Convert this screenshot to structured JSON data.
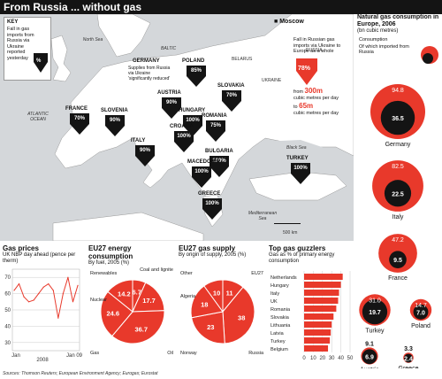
{
  "header": {
    "title": "From Russia ... without gas"
  },
  "key": {
    "title": "KEY",
    "text": "Fall in gas imports from Russia via Ukraine reported yesterday",
    "symbol": "%"
  },
  "moscow_label": "Moscow",
  "eu_fall": {
    "text1": "Fall in Russian gas imports via Ukraine to Europe as a whole",
    "value": "78%",
    "from_big": "300m",
    "from_rest": "cubic metres per day",
    "from_prefix": "from",
    "to_prefix": "to",
    "to_big": "65m",
    "to_rest": "cubic metres per day"
  },
  "seas": {
    "north_sea": "North Sea",
    "baltic": "BALTIC",
    "atlantic": "ATLANTIC OCEAN",
    "black_sea": "Black Sea",
    "med": "Mediterranean Sea"
  },
  "places": {
    "belarus": "BELARUS",
    "ukraine": "UKRAINE",
    "russia": "RUSSIA"
  },
  "scale_label": "500 km",
  "germany_note": "Supplies from Russia via Ukraine 'significantly reduced'",
  "country_markers": [
    {
      "name": "GERMANY",
      "value": ""
    },
    {
      "name": "POLAND",
      "value": "85%"
    },
    {
      "name": "SLOVAKIA",
      "value": "70%"
    },
    {
      "name": "AUSTRIA",
      "value": "90%"
    },
    {
      "name": "FRANCE",
      "value": "70%"
    },
    {
      "name": "SLOVENIA",
      "value": "90%"
    },
    {
      "name": "HUNGARY",
      "value": "100%"
    },
    {
      "name": "ROMANIA",
      "value": "75%"
    },
    {
      "name": "CROATIA",
      "value": "100%"
    },
    {
      "name": "ITALY",
      "value": "90%"
    },
    {
      "name": "BULGARIA",
      "value": "100%"
    },
    {
      "name": "MACEDONIA",
      "value": "100%"
    },
    {
      "name": "TURKEY",
      "value": "100%"
    },
    {
      "name": "GREECE",
      "value": "100%"
    }
  ],
  "consumption": {
    "title": "Natural gas consumption in Europe, 2006",
    "subtitle": "(bn cubic metres)",
    "legend_consumption": "Consumption",
    "legend_imported": "Of which imported from Russia",
    "countries": [
      {
        "name": "Germany",
        "total": "94.8",
        "russia": "36.5"
      },
      {
        "name": "Italy",
        "total": "82.5",
        "russia": "22.5"
      },
      {
        "name": "France",
        "total": "47.2",
        "russia": "9.5"
      },
      {
        "name": "Turkey",
        "total": "31.0",
        "russia": "19.7"
      },
      {
        "name": "Poland",
        "total": "14.7",
        "russia": "7.0"
      },
      {
        "name": "Austria",
        "total": "9.1",
        "russia": "6.9"
      },
      {
        "name": "Greece",
        "total": "3.3",
        "russia": "2.4"
      }
    ]
  },
  "gas_prices": {
    "title": "Gas prices",
    "subtitle": "UK NBP day ahead (pence per therm)",
    "y_ticks": [
      "70",
      "60",
      "50",
      "40",
      "30"
    ],
    "x_labels": [
      "Jan",
      "2008",
      "Jan 09"
    ]
  },
  "energy": {
    "title": "EU27 energy consumption",
    "subtitle": "By fuel, 2005 (%)",
    "segments": [
      {
        "label": "Renewables",
        "value": "6.7"
      },
      {
        "label": "Coal and lignite",
        "value": "17.7"
      },
      {
        "label": "Oil",
        "value": "36.7"
      },
      {
        "label": "Gas",
        "value": "24.6"
      },
      {
        "label": "Nuclear",
        "value": "14.2"
      }
    ]
  },
  "supply": {
    "title": "EU27 gas supply",
    "subtitle": "By origin of supply, 2005 (%)",
    "segments": [
      {
        "label": "Other",
        "value": "11"
      },
      {
        "label": "EU27",
        "value": "38"
      },
      {
        "label": "Russia",
        "value": "23"
      },
      {
        "label": "Norway",
        "value": "18"
      },
      {
        "label": "Algeria",
        "value": "10"
      }
    ]
  },
  "guzzlers": {
    "title": "Top gas guzzlers",
    "subtitle": "Gas as % of primary energy consumption",
    "countries": [
      "Netherlands",
      "Hungary",
      "Italy",
      "UK",
      "Romania",
      "Slovakia",
      "Lithuania",
      "Latvia",
      "Turkey",
      "Belgium"
    ],
    "x_ticks": [
      "0",
      "10",
      "20",
      "30",
      "40",
      "50"
    ]
  },
  "sources": "Sources: Thomson Reuters; European Environment Agency; Eurogas; Eurostat",
  "chart_data": [
    {
      "type": "line",
      "title": "Gas prices",
      "ylabel": "pence per therm",
      "ylim": [
        25,
        75
      ],
      "x": [
        "2007-12",
        "2008-01",
        "2008-02",
        "2008-03",
        "2008-04",
        "2008-05",
        "2008-06",
        "2008-07",
        "2008-08",
        "2008-09",
        "2008-10",
        "2008-11",
        "2008-12",
        "2009-01"
      ],
      "series": [
        {
          "name": "UK NBP day ahead",
          "values": [
            62,
            66,
            58,
            55,
            56,
            60,
            64,
            66,
            62,
            45,
            60,
            70,
            55,
            65
          ]
        }
      ]
    },
    {
      "type": "pie",
      "title": "EU27 energy consumption",
      "categories": [
        "Renewables",
        "Coal and lignite",
        "Oil",
        "Gas",
        "Nuclear"
      ],
      "values": [
        6.7,
        17.7,
        36.7,
        24.6,
        14.2
      ]
    },
    {
      "type": "pie",
      "title": "EU27 gas supply",
      "categories": [
        "Other",
        "EU27",
        "Russia",
        "Norway",
        "Algeria"
      ],
      "values": [
        11,
        38,
        23,
        18,
        10
      ]
    },
    {
      "type": "bar",
      "title": "Top gas guzzlers",
      "categories": [
        "Netherlands",
        "Hungary",
        "Italy",
        "UK",
        "Romania",
        "Slovakia",
        "Lithuania",
        "Latvia",
        "Turkey",
        "Belgium"
      ],
      "values": [
        42,
        40,
        38,
        37,
        35,
        32,
        30,
        29,
        28,
        26
      ],
      "xlim": [
        0,
        50
      ]
    },
    {
      "type": "bar",
      "title": "Natural gas consumption in Europe, 2006",
      "categories": [
        "Germany",
        "Italy",
        "France",
        "Turkey",
        "Poland",
        "Austria",
        "Greece"
      ],
      "series": [
        {
          "name": "Consumption",
          "values": [
            94.8,
            82.5,
            47.2,
            31.0,
            14.7,
            9.1,
            3.3
          ]
        },
        {
          "name": "Of which imported from Russia",
          "values": [
            36.5,
            22.5,
            9.5,
            19.7,
            7.0,
            6.9,
            2.4
          ]
        }
      ]
    }
  ],
  "colors": {
    "red": "#e8392b",
    "black": "#141414",
    "sea": "#d4d7da",
    "land": "#ffffff"
  }
}
